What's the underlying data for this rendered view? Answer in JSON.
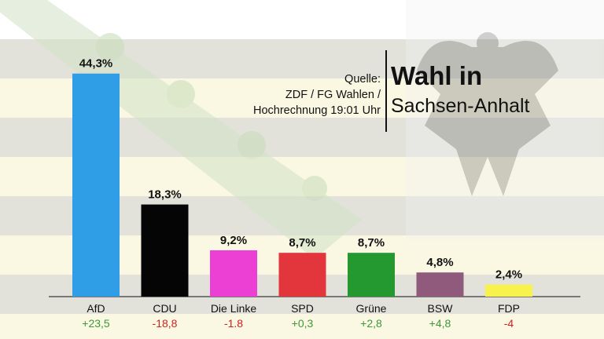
{
  "header": {
    "source_lines": [
      "Quelle:",
      "ZDF / FG Wahlen /",
      "Hochrechnung 19:01 Uhr"
    ],
    "title_line1": "Wahl in",
    "title_line2": "Sachsen-Anhalt"
  },
  "colors": {
    "flag_yellow": "#f3eec2",
    "flag_dark": "#bfbfaf",
    "crown_green": "#d3e3c6",
    "positive": "#3d9a37",
    "negative": "#d41f1f"
  },
  "chart_data": {
    "type": "bar",
    "title": "",
    "xlabel": "",
    "ylabel": "",
    "ylim": [
      0,
      48
    ],
    "grid": false,
    "categories": [
      "AfD",
      "CDU",
      "Die Linke",
      "SPD",
      "Grüne",
      "BSW",
      "FDP"
    ],
    "values": [
      44.3,
      18.3,
      9.2,
      8.7,
      8.7,
      4.8,
      2.4
    ],
    "value_labels": [
      "44,3%",
      "18,3%",
      "9,2%",
      "8,7%",
      "8,7%",
      "4,8%",
      "2,4%"
    ],
    "change_labels": [
      "+23,5",
      "-18,8",
      "-1.8",
      "+0,3",
      "+2,8",
      "+4,8",
      "-4"
    ],
    "change_signs": [
      "positive",
      "negative",
      "negative",
      "positive",
      "positive",
      "positive",
      "negative"
    ],
    "bar_colors": [
      "#2f9ee6",
      "#050505",
      "#ec3fd3",
      "#e2353c",
      "#24992f",
      "#8f5a7b",
      "#f7f34c"
    ]
  }
}
